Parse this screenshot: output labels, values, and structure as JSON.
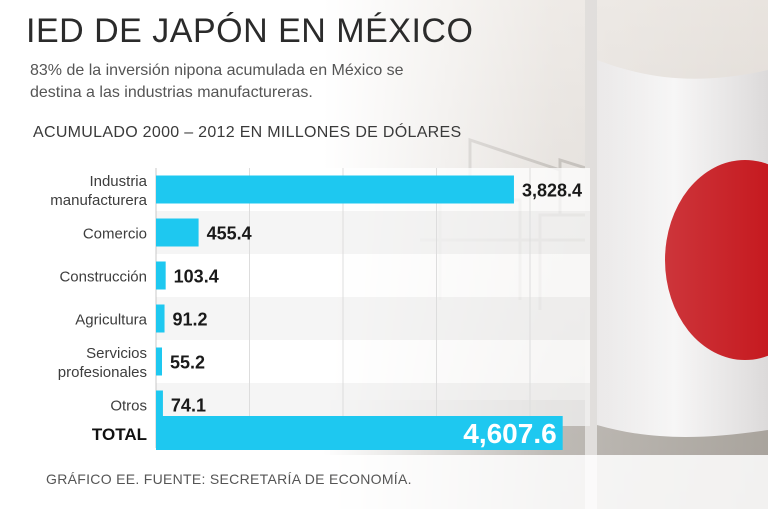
{
  "title": "IED DE JAPÓN EN MÉXICO",
  "subtitle": "83% de la inversión nipona acumulada en México se destina a las industrias manufactureras.",
  "axis_caption": "ACUMULADO 2000 – 2012 EN MILLONES DE DÓLARES",
  "footer": "GRÁFICO EE. FUENTE: SECRETARÍA DE ECONOMÍA.",
  "colors": {
    "bar": "#1ec8f0",
    "bar_stroke": "#16b4dc",
    "flag_red": "#c61a20",
    "value_text": "#1a1a1a",
    "total_text": "#ffffff"
  },
  "chart_data": {
    "type": "bar",
    "orientation": "horizontal",
    "title": "IED DE JAPÓN EN MÉXICO",
    "xlabel": "ACUMULADO 2000 – 2012 EN MILLONES DE DÓLARES",
    "ylabel": "",
    "grid": true,
    "categories": [
      [
        "Industria",
        "manufacturera"
      ],
      [
        "Comercio"
      ],
      [
        "Construcción"
      ],
      [
        "Agricultura"
      ],
      [
        "Servicios",
        "profesionales"
      ],
      [
        "Otros"
      ]
    ],
    "values": [
      3828.4,
      455.4,
      103.4,
      91.2,
      55.2,
      74.1
    ],
    "value_labels": [
      "3,828.4",
      "455.4",
      "103.4",
      "91.2",
      "55.2",
      "74.1"
    ],
    "total": {
      "label": "TOTAL",
      "value": 4607.6,
      "value_label": "4,607.6"
    }
  }
}
